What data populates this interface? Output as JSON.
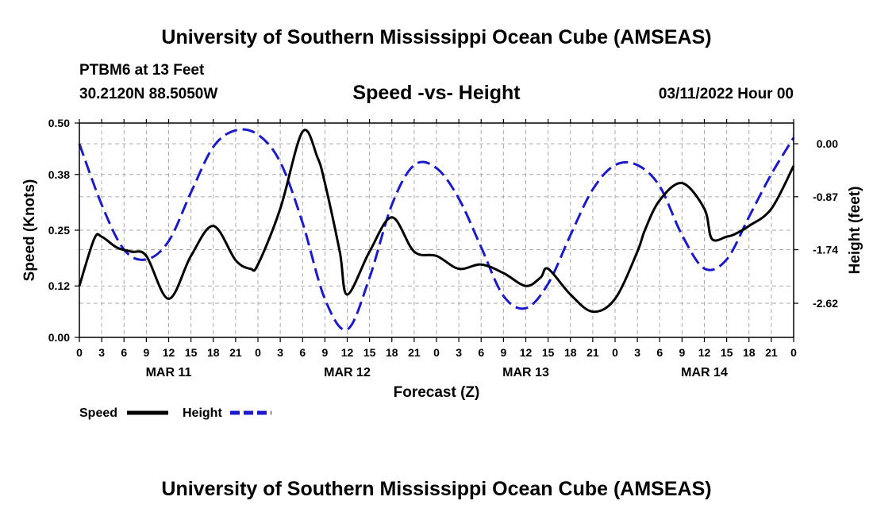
{
  "header": {
    "title_top": "University of Southern Mississippi Ocean Cube (AMSEAS)",
    "title_bottom": "University of Southern Mississippi Ocean Cube (AMSEAS)",
    "station": "PTBM6 at 13 Feet",
    "location": "30.2120N  88.5050W",
    "chart_title": "Speed -vs- Height",
    "date": "03/11/2022 Hour 00"
  },
  "legend": {
    "speed_label": "Speed",
    "height_label": "Height"
  },
  "colors": {
    "speed": "#000000",
    "height": "#1a1acc",
    "grid": "#aaaaaa"
  },
  "chart_data": {
    "type": "line",
    "title": "Speed -vs- Height",
    "xlabel": "Forecast (Z)",
    "ylabel": "Speed (Knots)",
    "y2label": "Height (feet)",
    "xlim": [
      0,
      96
    ],
    "ylim": [
      0,
      0.5
    ],
    "y2lim": [
      -3.18,
      0.34
    ],
    "x_tick_step": 3,
    "x_tick_labels": [
      "0",
      "3",
      "6",
      "9",
      "12",
      "15",
      "18",
      "21",
      "0",
      "3",
      "6",
      "9",
      "12",
      "15",
      "18",
      "21",
      "0",
      "3",
      "6",
      "9",
      "12",
      "15",
      "18",
      "21",
      "0",
      "3",
      "6",
      "9",
      "12",
      "15",
      "18",
      "21",
      "0"
    ],
    "date_labels": [
      {
        "x": 12,
        "label": "MAR 11"
      },
      {
        "x": 36,
        "label": "MAR 12"
      },
      {
        "x": 60,
        "label": "MAR 13"
      },
      {
        "x": 84,
        "label": "MAR 14"
      }
    ],
    "y_ticks": [
      0.0,
      0.12,
      0.25,
      0.38,
      0.5
    ],
    "y_tick_labels": [
      "0.00",
      "0.12",
      "0.25",
      "0.38",
      "0.50"
    ],
    "y2_ticks": [
      0.0,
      -0.87,
      -1.74,
      -2.62
    ],
    "y2_tick_labels": [
      "0.00",
      "-0.87",
      "-1.74",
      "-2.62"
    ],
    "grid": true,
    "series": [
      {
        "name": "Speed",
        "axis": "left",
        "style": "solid",
        "x": [
          0,
          2,
          3,
          5,
          7,
          9,
          12,
          15,
          18,
          21,
          23,
          24,
          27,
          30,
          32,
          33,
          35,
          36,
          39,
          42,
          45,
          48,
          51,
          54,
          57,
          60,
          62,
          63,
          66,
          69,
          72,
          75,
          76,
          78,
          81,
          84,
          85,
          87,
          88,
          90,
          93,
          96
        ],
        "y": [
          0.12,
          0.23,
          0.235,
          0.21,
          0.2,
          0.19,
          0.09,
          0.19,
          0.26,
          0.18,
          0.16,
          0.17,
          0.3,
          0.48,
          0.42,
          0.36,
          0.2,
          0.1,
          0.2,
          0.28,
          0.2,
          0.19,
          0.16,
          0.17,
          0.15,
          0.12,
          0.14,
          0.16,
          0.1,
          0.06,
          0.09,
          0.2,
          0.25,
          0.32,
          0.36,
          0.3,
          0.23,
          0.235,
          0.24,
          0.26,
          0.3,
          0.4
        ]
      },
      {
        "name": "Height",
        "axis": "right",
        "style": "dashed",
        "x": [
          0,
          3,
          6,
          9,
          12,
          15,
          18,
          21,
          24,
          27,
          30,
          33,
          36,
          39,
          42,
          45,
          48,
          51,
          54,
          57,
          60,
          63,
          66,
          69,
          72,
          75,
          78,
          81,
          84,
          87,
          90,
          93,
          96
        ],
        "y": [
          0.0,
          -1.0,
          -1.74,
          -1.9,
          -1.6,
          -0.8,
          -0.05,
          0.22,
          0.15,
          -0.3,
          -1.3,
          -2.55,
          -3.05,
          -2.2,
          -1.0,
          -0.35,
          -0.4,
          -0.9,
          -1.7,
          -2.5,
          -2.7,
          -2.3,
          -1.5,
          -0.75,
          -0.35,
          -0.35,
          -0.7,
          -1.5,
          -2.05,
          -1.9,
          -1.2,
          -0.5,
          0.1
        ]
      }
    ]
  }
}
